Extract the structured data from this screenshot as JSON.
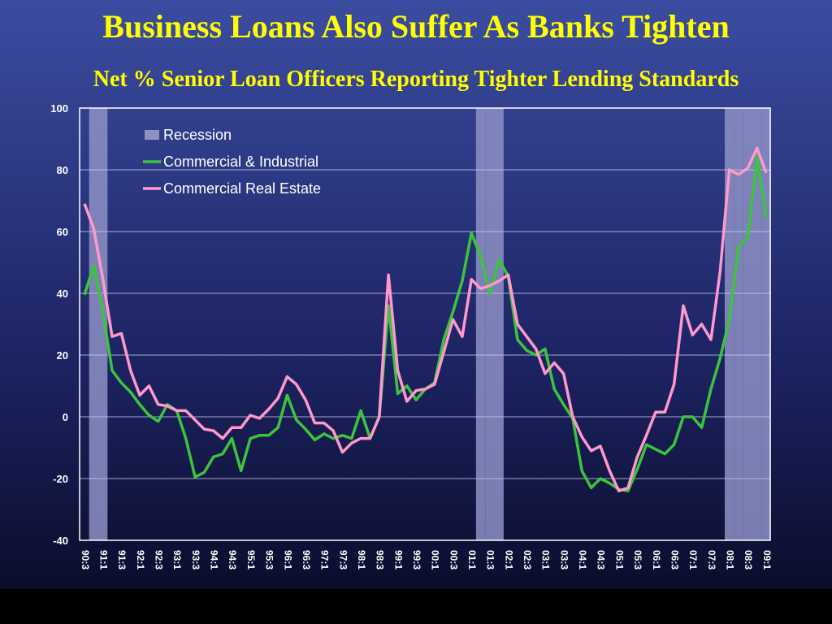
{
  "chart_data": {
    "type": "line",
    "title": "Business Loans Also Suffer As Banks Tighten",
    "subtitle": "Net % Senior Loan Officers Reporting Tighter Lending Standards",
    "categories": [
      "90:3",
      null,
      "91:1",
      null,
      "91:3",
      null,
      "92:1",
      null,
      "92:3",
      null,
      "93:1",
      null,
      "93:3",
      null,
      "94:1",
      null,
      "94:3",
      null,
      "95:1",
      null,
      "95:3",
      null,
      "96:1",
      null,
      "96:3",
      null,
      "97:1",
      null,
      "97:3",
      null,
      "98:1",
      null,
      "98:3",
      null,
      "99:1",
      null,
      "99:3",
      null,
      "00:1",
      null,
      "00:3",
      null,
      "01:1",
      null,
      "01:3",
      null,
      "02:1",
      null,
      "02:3",
      null,
      "03:1",
      null,
      "03:3",
      null,
      "04:1",
      null,
      "04:3",
      null,
      "05:1",
      null,
      "05:3",
      null,
      "06:1",
      null,
      "06:3",
      null,
      "07:1",
      null,
      "07:3",
      null,
      "08:1",
      null,
      "08:3",
      null,
      "09:1"
    ],
    "series": [
      {
        "name": "Recession",
        "type": "bar",
        "color": "#8d91c4",
        "values": [
          null,
          100,
          100,
          null,
          null,
          null,
          null,
          null,
          null,
          null,
          null,
          null,
          null,
          null,
          null,
          null,
          null,
          null,
          null,
          null,
          null,
          null,
          null,
          null,
          null,
          null,
          null,
          null,
          null,
          null,
          null,
          null,
          null,
          null,
          null,
          null,
          null,
          null,
          null,
          null,
          null,
          null,
          null,
          100,
          100,
          100,
          null,
          null,
          null,
          null,
          null,
          null,
          null,
          null,
          null,
          null,
          null,
          null,
          null,
          null,
          null,
          null,
          null,
          null,
          null,
          null,
          null,
          null,
          null,
          null,
          100,
          100,
          100,
          100,
          100
        ]
      },
      {
        "name": "Commercial & Industrial",
        "type": "line",
        "color": "#3cc43c",
        "values": [
          39.5,
          49,
          34,
          15,
          11,
          8,
          4,
          0.5,
          -1.5,
          4,
          2,
          -7,
          -19.5,
          -18,
          -13,
          -12,
          -7,
          -17.5,
          -7,
          -6,
          -6,
          -3.5,
          7,
          -1,
          -4,
          -7.5,
          -5.5,
          -7,
          -6,
          -7,
          2,
          -7,
          0,
          36,
          7.5,
          10,
          5.5,
          9,
          11,
          25,
          34,
          44,
          59.5,
          52,
          40,
          51,
          45.5,
          25,
          21.5,
          20,
          22,
          9,
          4,
          -0.5,
          -17.5,
          -23,
          -20,
          -21.5,
          -23.5,
          -24,
          -17,
          -9,
          -10.5,
          -12,
          -9,
          0,
          0,
          -3.5,
          9,
          19,
          31.5,
          55,
          58,
          84,
          64.5
        ]
      },
      {
        "name": "Commercial Real Estate",
        "type": "line",
        "color": "#ff99cc",
        "values": [
          69,
          61,
          44.5,
          26,
          27,
          15,
          7,
          10,
          4,
          3.5,
          2,
          2,
          -1,
          -4,
          -4.5,
          -7,
          -3.5,
          -3.5,
          0.5,
          -0.5,
          2.5,
          6,
          13,
          10.5,
          5.5,
          -2,
          -2,
          -4.5,
          -11.5,
          -8.5,
          -7,
          -7,
          0,
          46,
          15,
          5,
          8.5,
          9,
          10.5,
          21,
          31.5,
          26,
          44.5,
          41.5,
          42.5,
          44,
          46,
          30,
          26,
          22,
          14,
          17.5,
          14,
          0,
          -6.5,
          -11,
          -9.5,
          -17.5,
          -24,
          -23,
          -13,
          -6,
          1.5,
          1.5,
          10.5,
          36,
          26.5,
          30,
          25,
          47,
          80,
          78.5,
          80.5,
          87,
          79
        ]
      }
    ],
    "ylim": [
      -40,
      100
    ],
    "yticks": [
      -40,
      -20,
      0,
      20,
      40,
      60,
      80,
      100
    ],
    "grid": true,
    "legend": "top-left"
  }
}
